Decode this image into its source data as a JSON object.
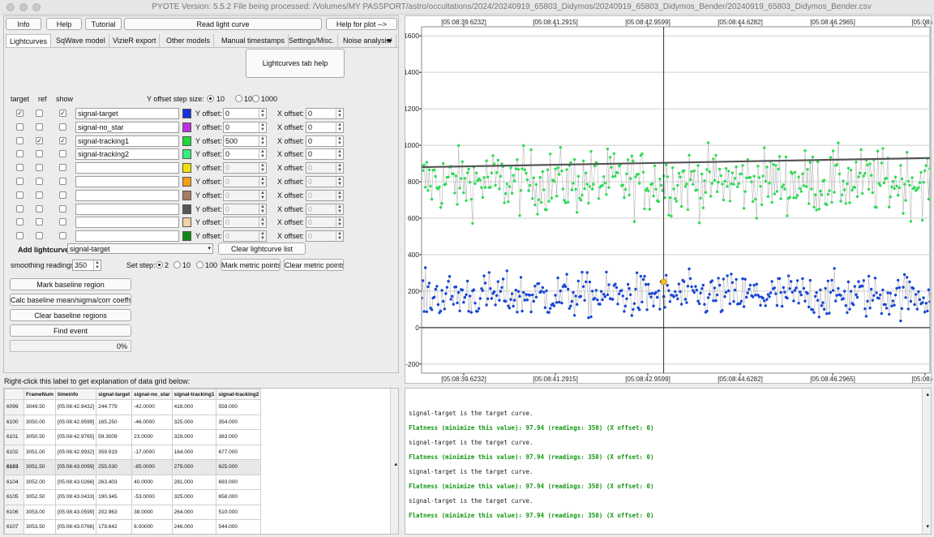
{
  "window": {
    "title": "PYOTE Version: 5.5.2  File being processed: /Volumes/MY PASSPORT/astro/occultations/2024/20240919_65803_Didymos/20240919_65803_Didymos_Bender/20240919_65803_Didymos_Bender.csv"
  },
  "toolbar": {
    "info": "Info",
    "help": "Help",
    "tutorial": "Tutorial",
    "read_light_curve": "Read light curve",
    "help_for_plot": "Help for plot -->"
  },
  "tabs": [
    "Lightcurves",
    "SqWave model",
    "VizieR export",
    "Other models",
    "Manual timestamps",
    "Settings/Misc.",
    "Noise analysis/"
  ],
  "lightcurves": {
    "help_button": "Lightcurves tab help",
    "col_target": "target",
    "col_ref": "ref",
    "col_show": "show",
    "y_step_label": "Y offset step size:",
    "y_steps": [
      "10",
      "100",
      "1000"
    ],
    "y_offset_label": "Y offset:",
    "x_offset_label": "X offset:",
    "rows": [
      {
        "target": true,
        "ref": false,
        "show": true,
        "name": "signal-target",
        "color": "#1530d8",
        "yoff": "0",
        "xoff": "0",
        "enabled": true
      },
      {
        "target": false,
        "ref": false,
        "show": false,
        "name": "signal-no_star",
        "color": "#c030e0",
        "yoff": "0",
        "xoff": "0",
        "enabled": true
      },
      {
        "target": false,
        "ref": true,
        "show": true,
        "name": "signal-tracking1",
        "color": "#20d838",
        "yoff": "500",
        "xoff": "0",
        "enabled": true
      },
      {
        "target": false,
        "ref": false,
        "show": false,
        "name": "signal-tracking2",
        "color": "#30f080",
        "yoff": "0",
        "xoff": "0",
        "enabled": true
      },
      {
        "target": false,
        "ref": false,
        "show": false,
        "name": "",
        "color": "#f0e000",
        "yoff": "0",
        "xoff": "0",
        "enabled": false
      },
      {
        "target": false,
        "ref": false,
        "show": false,
        "name": "",
        "color": "#f0a018",
        "yoff": "0",
        "xoff": "0",
        "enabled": false
      },
      {
        "target": false,
        "ref": false,
        "show": false,
        "name": "",
        "color": "#a87a60",
        "yoff": "0",
        "xoff": "0",
        "enabled": false
      },
      {
        "target": false,
        "ref": false,
        "show": false,
        "name": "",
        "color": "#555555",
        "yoff": "0",
        "xoff": "0",
        "enabled": false
      },
      {
        "target": false,
        "ref": false,
        "show": false,
        "name": "",
        "color": "#f4d0a8",
        "yoff": "0",
        "xoff": "0",
        "enabled": false
      },
      {
        "target": false,
        "ref": false,
        "show": false,
        "name": "",
        "color": "#108818",
        "yoff": "0",
        "xoff": "0",
        "enabled": false
      }
    ],
    "add_label": "Add lightcurve",
    "add_value": "signal-target",
    "clear_list": "Clear lightcurve list",
    "smoothing_label": "smoothing readings",
    "smoothing_value": "350",
    "set_step_label": "Set step:",
    "set_steps": [
      "2",
      "10",
      "100"
    ],
    "mark_metric": "Mark metric points",
    "clear_metric": "Clear metric points",
    "mark_baseline": "Mark baseline region",
    "calc_baseline": "Calc baseline mean/sigma/corr coeffs",
    "clear_baseline": "Clear baseline regions",
    "find_event": "Find event",
    "progress": "0%"
  },
  "grid_hint": "Right-click this label to get explanation of data grid below:",
  "table": {
    "headers": [
      "FrameNum",
      "timeinfo",
      "signal-target",
      "signal-no_star",
      "signal-tracking1",
      "signal-tracking2"
    ],
    "rows": [
      {
        "id": "6099",
        "cells": [
          "3049.50",
          "[05:08:42.9432]",
          "244.779",
          "-42.0000",
          "418.000",
          "559.000"
        ]
      },
      {
        "id": "6100",
        "cells": [
          "3050.00",
          "[05:08:42.9599]",
          "165.250",
          "-46.0000",
          "325.000",
          "354.000"
        ]
      },
      {
        "id": "6101",
        "cells": [
          "3050.50",
          "[05:08:42.9765]",
          "59.3009",
          "23.0000",
          "329.000",
          "383.000"
        ]
      },
      {
        "id": "6102",
        "cells": [
          "3051.00",
          "[05:08:42.9932]",
          "359.919",
          "-17.0000",
          "164.000",
          "677.000"
        ]
      },
      {
        "id": "6103",
        "cells": [
          "3051.50",
          "[05:08:43.0099]",
          "255.030",
          "-85.0000",
          "279.000",
          "625.000"
        ]
      },
      {
        "id": "6104",
        "cells": [
          "3052.00",
          "[05:08:43.0266]",
          "263.403",
          "40.0000",
          "281.000",
          "693.000"
        ]
      },
      {
        "id": "6105",
        "cells": [
          "3052.50",
          "[05:08:43.0433]",
          "190.345",
          "-53.0000",
          "325.000",
          "658.000"
        ]
      },
      {
        "id": "6106",
        "cells": [
          "3053.00",
          "[05:08:43.0599]",
          "202.963",
          "38.0000",
          "264.000",
          "510.000"
        ]
      },
      {
        "id": "6107",
        "cells": [
          "3053.50",
          "[05:08:43.0766]",
          "179.642",
          "8.00000",
          "246.000",
          "544.000"
        ]
      }
    ]
  },
  "log": {
    "lines": [
      {
        "text": "signal-target is the target curve.",
        "style": "blk"
      },
      {
        "text": "Flatness (minimize this value): 97.94 (readings: 350) (X offset: 0)",
        "style": "grn"
      },
      {
        "text": "signal-target is the target curve.",
        "style": "blk"
      },
      {
        "text": "Flatness (minimize this value): 97.94 (readings: 350) (X offset: 0)",
        "style": "grn"
      },
      {
        "text": "signal-target is the target curve.",
        "style": "blk"
      },
      {
        "text": "Flatness (minimize this value): 97.94 (readings: 350) (X offset: 0)",
        "style": "grn"
      },
      {
        "text": "signal-target is the target curve.",
        "style": "blk"
      },
      {
        "text": "Flatness (minimize this value): 97.94 (readings: 350) (X offset: 0)",
        "style": "grn"
      }
    ]
  },
  "chart_data": {
    "type": "scatter",
    "x_ticks": [
      "[05:08:39.6232]",
      "[05:08:41.2915]",
      "[05:08:42.9599]",
      "[05:08:44.6282]",
      "[05:08:46.2965]",
      "[05:08:47"
    ],
    "y_ticks": [
      "1600",
      "1400",
      "1200",
      "1000",
      "800",
      "600",
      "400",
      "200",
      "0",
      "-200"
    ],
    "ylim": [
      -250,
      1650
    ],
    "frame_range": [
      3000,
      3105
    ],
    "cursor_frame": 3050,
    "grid": true,
    "series": [
      {
        "label": "signal-tracking1 (+500)",
        "color": "#2edc55",
        "mean": 800,
        "trend": [
          880,
          930
        ],
        "spread": 160
      },
      {
        "label": "signal-target",
        "color": "#1846d6",
        "mean": 175,
        "spread": 110
      }
    ],
    "highlight_point": {
      "frame": 3050,
      "y": 250,
      "color": "#f5c21a"
    }
  }
}
